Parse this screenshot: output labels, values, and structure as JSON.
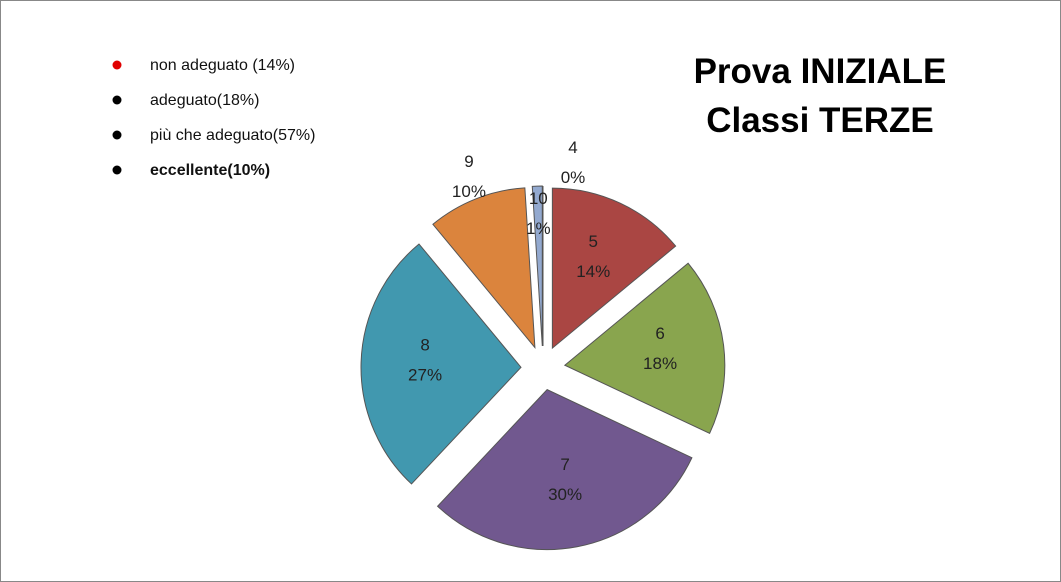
{
  "chart_data": {
    "type": "pie",
    "title": [
      "Prova  INIZIALE",
      "Classi   TERZE"
    ],
    "annotations": [
      "non adeguato (14%)",
      "adeguato(18%)",
      "più che adeguato(57%)",
      "eccellente(10%)"
    ],
    "categories": [
      "4",
      "5",
      "6",
      "7",
      "8",
      "9",
      "10"
    ],
    "values": [
      0,
      14,
      18,
      30,
      27,
      10,
      1
    ],
    "value_labels": [
      "0%",
      "14%",
      "18%",
      "30%",
      "27%",
      "10%",
      "1%"
    ],
    "colors": [
      "#93a9cf",
      "#aa4643",
      "#89a54e",
      "#71588f",
      "#4198af",
      "#db843d",
      "#93a9cf"
    ]
  }
}
